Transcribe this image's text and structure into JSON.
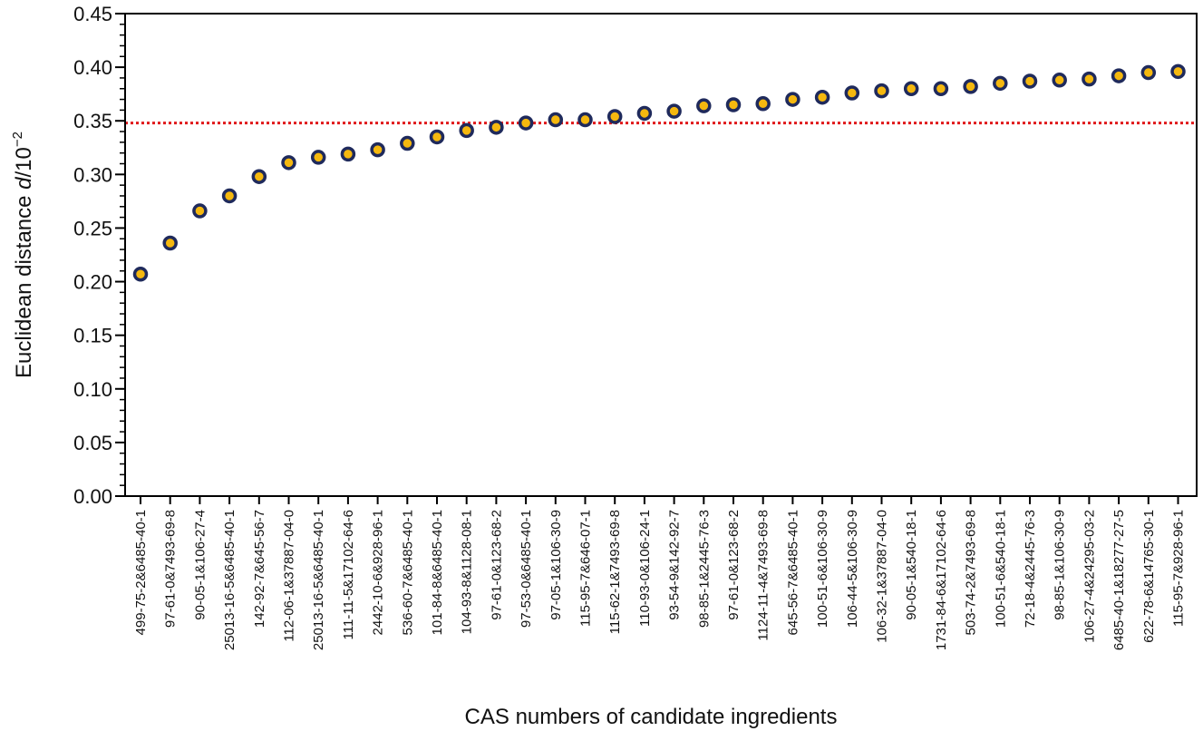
{
  "colors": {
    "point_fill": "#f5b80f",
    "point_stroke": "#1f2a5c",
    "threshold_line": "#e0191b",
    "axis": "#000000"
  },
  "chart_data": {
    "type": "scatter",
    "title": "",
    "xlabel": "CAS numbers of candidate ingredients",
    "ylabel_prefix": "Euclidean distance ",
    "ylabel_var": "d",
    "ylabel_unit": "/10",
    "ylabel_exp": "−2",
    "ylim": [
      0,
      0.45
    ],
    "ytick_step": 0.05,
    "ytick_labels": [
      "0.00",
      "0.05",
      "0.10",
      "0.15",
      "0.20",
      "0.25",
      "0.30",
      "0.35",
      "0.40",
      "0.45"
    ],
    "threshold": 0.348,
    "categories": [
      "499-75-2&6485-40-1",
      "97-61-0&7493-69-8",
      "90-05-1&106-27-4",
      "25013-16-5&6485-40-1",
      "142-92-7&645-56-7",
      "112-06-1&37887-04-0",
      "25013-16-5&6485-40-1",
      "111-11-5&17102-64-6",
      "2442-10-6&928-96-1",
      "536-60-7&6485-40-1",
      "101-84-8&6485-40-1",
      "104-93-8&1128-08-1",
      "97-61-0&123-68-2",
      "97-53-0&6485-40-1",
      "97-05-1&106-30-9",
      "115-95-7&646-07-1",
      "115-62-1&7493-69-8",
      "110-93-0&106-24-1",
      "93-54-9&142-92-7",
      "98-85-1&2445-76-3",
      "97-61-0&123-68-2",
      "1124-11-4&7493-69-8",
      "645-56-7&6485-40-1",
      "100-51-6&106-30-9",
      "106-44-5&106-30-9",
      "106-32-1&37887-04-0",
      "90-05-1&540-18-1",
      "1731-84-6&17102-64-6",
      "503-74-2&7493-69-8",
      "100-51-6&540-18-1",
      "72-18-4&2445-76-3",
      "98-85-1&106-30-9",
      "106-27-4&24295-03-2",
      "6485-40-1&18277-27-5",
      "622-78-6&14765-30-1",
      "115-95-7&928-96-1"
    ],
    "values": [
      0.207,
      0.236,
      0.266,
      0.28,
      0.298,
      0.311,
      0.316,
      0.319,
      0.323,
      0.329,
      0.335,
      0.341,
      0.344,
      0.348,
      0.351,
      0.351,
      0.354,
      0.357,
      0.359,
      0.364,
      0.365,
      0.366,
      0.37,
      0.372,
      0.376,
      0.378,
      0.38,
      0.38,
      0.382,
      0.385,
      0.387,
      0.388,
      0.389,
      0.392,
      0.395,
      0.396
    ]
  }
}
